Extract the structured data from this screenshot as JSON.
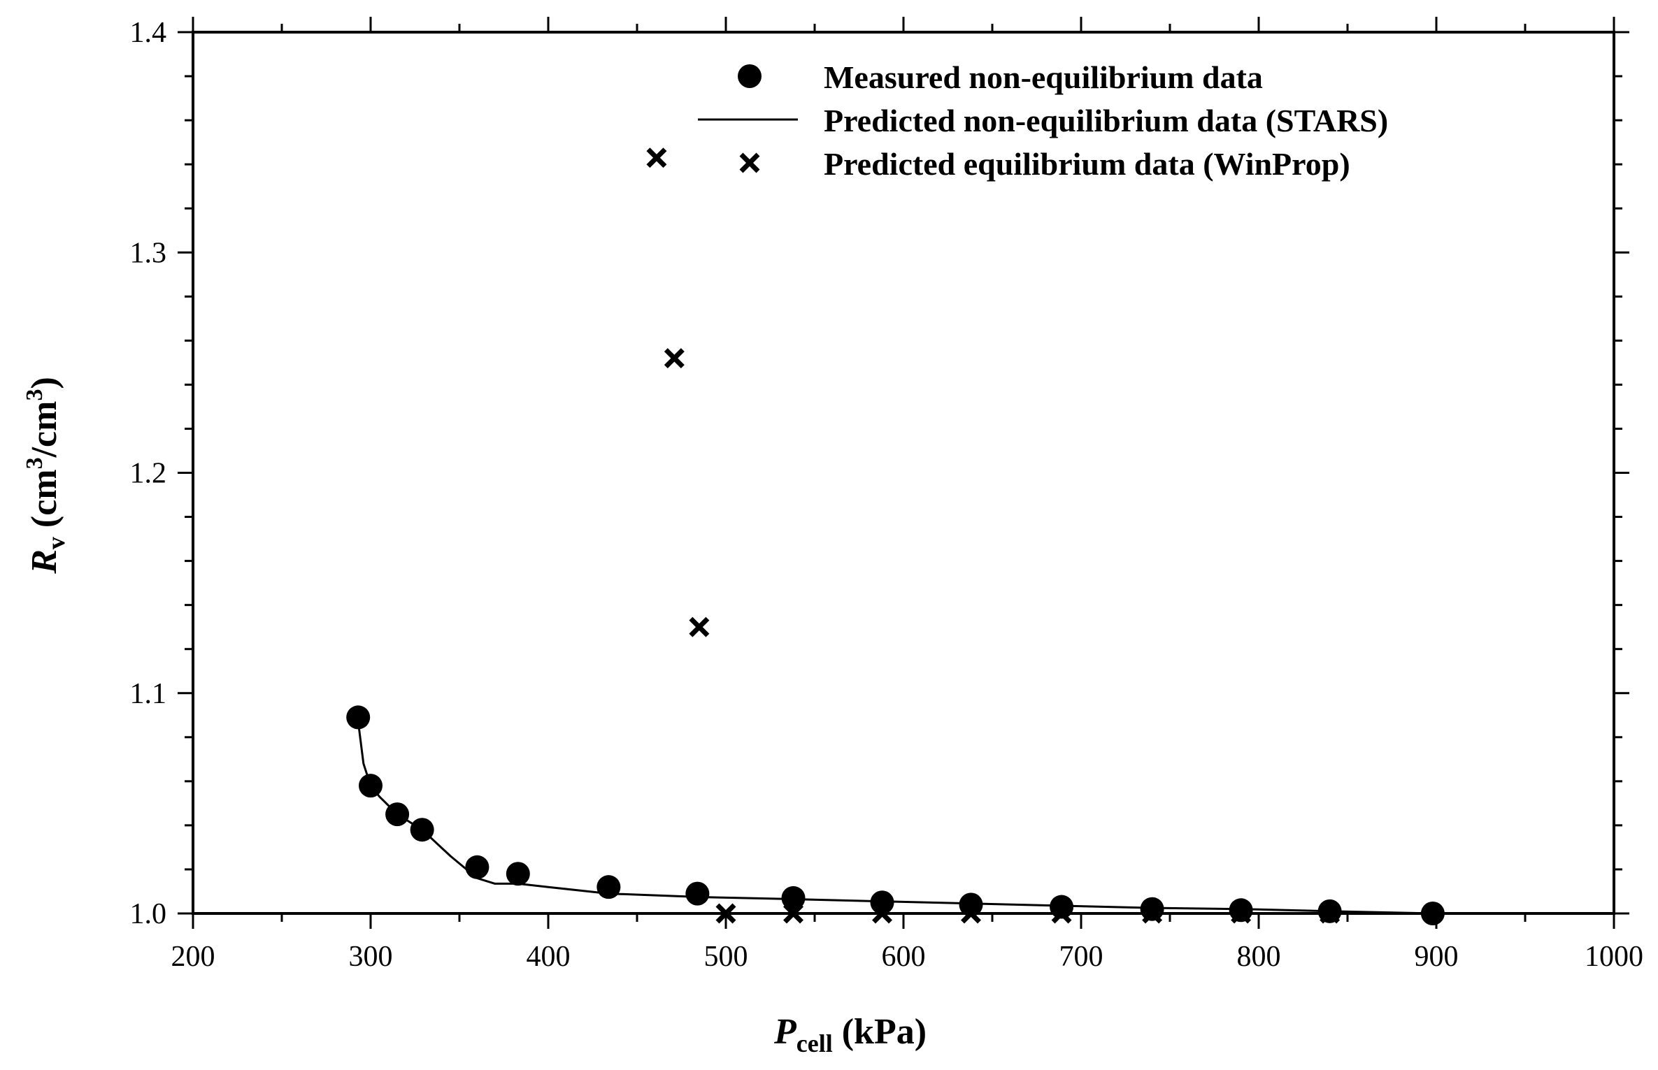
{
  "chart_data": {
    "type": "scatter",
    "xlim": [
      200,
      1000
    ],
    "ylim": [
      1.0,
      1.4
    ],
    "x_ticks": [
      "200",
      "300",
      "400",
      "500",
      "600",
      "700",
      "800",
      "900",
      "1000"
    ],
    "y_ticks": [
      "1.0",
      "1.1",
      "1.2",
      "1.3",
      "1.4"
    ],
    "xlabel": {
      "main": "P",
      "sub": "cell",
      "unit": " (kPa)"
    },
    "ylabel": {
      "main": "R",
      "sub": "v",
      "open": " (cm",
      "sup1": "3",
      "mid": "/cm",
      "sup2": "3",
      "close": ")"
    },
    "legend_position": "top-right",
    "series": [
      {
        "name": "Measured non-equilibrium data",
        "marker": "filled-circle",
        "x": [
          293,
          300,
          315,
          329,
          360,
          383,
          434,
          484,
          538,
          588,
          638,
          689,
          740,
          790,
          840,
          898
        ],
        "y": [
          1.089,
          1.058,
          1.045,
          1.038,
          1.021,
          1.018,
          1.012,
          1.009,
          1.007,
          1.005,
          1.004,
          1.003,
          1.002,
          1.0015,
          1.001,
          1.0
        ]
      },
      {
        "name": "Predicted non-equilibrium data (STARS)",
        "marker": "line",
        "x": [
          293,
          296,
          300,
          305,
          315,
          329,
          345,
          360,
          370,
          383,
          400,
          434,
          484,
          538,
          588,
          638,
          689,
          740,
          790,
          840,
          898
        ],
        "y": [
          1.087,
          1.068,
          1.058,
          1.053,
          1.045,
          1.038,
          1.026,
          1.016,
          1.0135,
          1.0135,
          1.012,
          1.009,
          1.0075,
          1.0065,
          1.0055,
          1.0045,
          1.0035,
          1.0025,
          1.002,
          1.001,
          1.0
        ]
      },
      {
        "name": "Predicted equilibrium data (WinProp)",
        "marker": "x",
        "x": [
          461,
          471,
          485,
          500,
          538,
          588,
          638,
          689,
          740,
          790,
          840
        ],
        "y": [
          1.343,
          1.252,
          1.13,
          1.0,
          1.0,
          1.0,
          1.0,
          1.0,
          1.0,
          1.0,
          1.0
        ]
      }
    ]
  }
}
